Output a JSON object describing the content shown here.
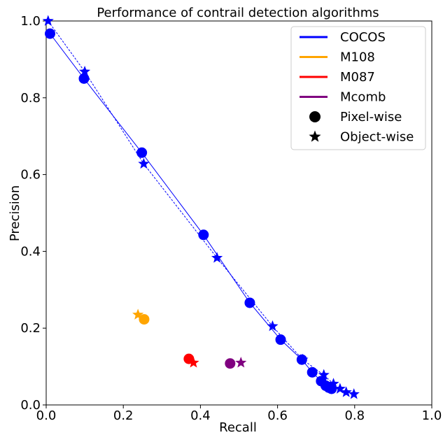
{
  "chart_data": {
    "type": "scatter",
    "title": "Performance of contrail detection algorithms",
    "xlabel": "Recall",
    "ylabel": "Precision",
    "xlim": [
      0,
      1.0
    ],
    "ylim": [
      0,
      1.0
    ],
    "xticks": [
      "0.0",
      "0.2",
      "0.4",
      "0.6",
      "0.8",
      "1.0"
    ],
    "yticks": [
      "0.0",
      "0.2",
      "0.4",
      "0.6",
      "0.8",
      "1.0"
    ],
    "grid": false,
    "legend_position": "top-right",
    "legend": [
      {
        "label": "COCOS",
        "kind": "line",
        "color": "#0000ff"
      },
      {
        "label": "M108",
        "kind": "line",
        "color": "#ffa500"
      },
      {
        "label": "M087",
        "kind": "line",
        "color": "#ff0000"
      },
      {
        "label": "Mcomb",
        "kind": "line",
        "color": "#800080"
      },
      {
        "label": "Pixel-wise",
        "kind": "circle",
        "color": "#000000"
      },
      {
        "label": "Object-wise",
        "kind": "star",
        "color": "#000000"
      }
    ],
    "series": [
      {
        "name": "COCOS",
        "subtype": "Pixel-wise",
        "color": "#0000ff",
        "marker": "circle",
        "line": "solid",
        "points": [
          [
            0.01,
            0.967
          ],
          [
            0.098,
            0.85
          ],
          [
            0.248,
            0.657
          ],
          [
            0.408,
            0.443
          ],
          [
            0.528,
            0.266
          ],
          [
            0.608,
            0.17
          ],
          [
            0.663,
            0.118
          ],
          [
            0.69,
            0.085
          ],
          [
            0.713,
            0.062
          ],
          [
            0.725,
            0.05
          ],
          [
            0.733,
            0.045
          ],
          [
            0.74,
            0.042
          ]
        ]
      },
      {
        "name": "COCOS",
        "subtype": "Object-wise",
        "color": "#0000ff",
        "marker": "star",
        "line": "dashed",
        "points": [
          [
            0.005,
            1.0
          ],
          [
            0.1,
            0.868
          ],
          [
            0.253,
            0.628
          ],
          [
            0.443,
            0.383
          ],
          [
            0.587,
            0.205
          ],
          [
            0.665,
            0.118
          ],
          [
            0.72,
            0.078
          ],
          [
            0.745,
            0.055
          ],
          [
            0.762,
            0.042
          ],
          [
            0.778,
            0.033
          ],
          [
            0.798,
            0.028
          ]
        ]
      },
      {
        "name": "M108",
        "subtype": "Pixel-wise",
        "color": "#ffa500",
        "marker": "circle",
        "points": [
          [
            0.254,
            0.223
          ]
        ]
      },
      {
        "name": "M108",
        "subtype": "Object-wise",
        "color": "#ffa500",
        "marker": "star",
        "points": [
          [
            0.238,
            0.235
          ]
        ]
      },
      {
        "name": "M087",
        "subtype": "Pixel-wise",
        "color": "#ff0000",
        "marker": "circle",
        "points": [
          [
            0.37,
            0.12
          ]
        ]
      },
      {
        "name": "M087",
        "subtype": "Object-wise",
        "color": "#ff0000",
        "marker": "star",
        "points": [
          [
            0.382,
            0.11
          ]
        ]
      },
      {
        "name": "Mcomb",
        "subtype": "Pixel-wise",
        "color": "#800080",
        "marker": "circle",
        "points": [
          [
            0.477,
            0.108
          ]
        ]
      },
      {
        "name": "Mcomb",
        "subtype": "Object-wise",
        "color": "#800080",
        "marker": "star",
        "points": [
          [
            0.505,
            0.11
          ]
        ]
      }
    ]
  }
}
